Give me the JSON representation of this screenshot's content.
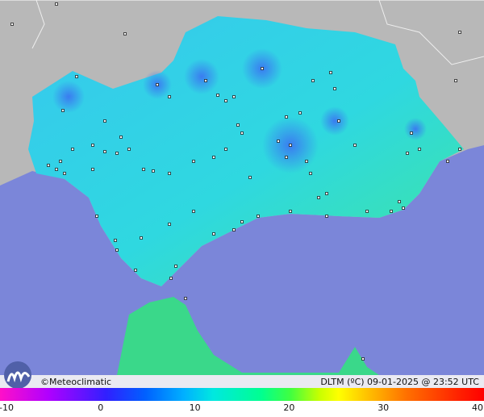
{
  "credit": "©Meteoclimatic",
  "caption": "DLTM (ºC) 09-01-2025 @ 23:52 UTC",
  "scale": {
    "ticks": [
      -10,
      0,
      10,
      20,
      30,
      40
    ]
  }
}
